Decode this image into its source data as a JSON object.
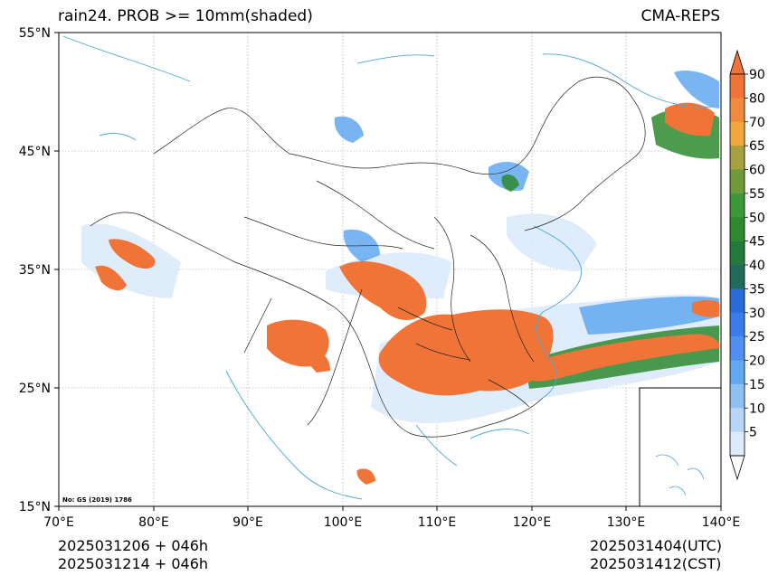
{
  "header": {
    "title": "rain24. PROB >= 10mm(shaded)",
    "model": "CMA-REPS"
  },
  "axes": {
    "lat_labels": [
      "55°N",
      "45°N",
      "35°N",
      "25°N",
      "15°N"
    ],
    "lon_labels": [
      "70°E",
      "80°E",
      "90°E",
      "100°E",
      "110°E",
      "120°E",
      "130°E",
      "140°E"
    ],
    "lat_range": [
      15,
      55
    ],
    "lon_range": [
      70,
      140
    ]
  },
  "colorbar": {
    "ticks": [
      "90",
      "80",
      "70",
      "65",
      "60",
      "55",
      "50",
      "45",
      "40",
      "35",
      "30",
      "25",
      "20",
      "15",
      "10",
      "5"
    ],
    "colors": [
      "#f07438",
      "#f08a3c",
      "#f0a83c",
      "#a5a040",
      "#6e9a3a",
      "#3a9a3a",
      "#2e8a2e",
      "#257a3a",
      "#1f6a5a",
      "#2a6bd8",
      "#3a7de8",
      "#4f90ee",
      "#62a8f0",
      "#8fc0f2",
      "#b7d6f5",
      "#dcebfb"
    ]
  },
  "map": {
    "approval_number": "No: GS (2019) 1786",
    "colors": {
      "heavy": "#f07438",
      "coast": "#4aa8d8",
      "border": "#222222",
      "grid": "#888888"
    }
  },
  "footer": {
    "init_utc": "2025031206  +  046h",
    "init_cst": "2025031214  +  046h",
    "valid_utc": "2025031404(UTC)",
    "valid_cst": "2025031412(CST)"
  }
}
